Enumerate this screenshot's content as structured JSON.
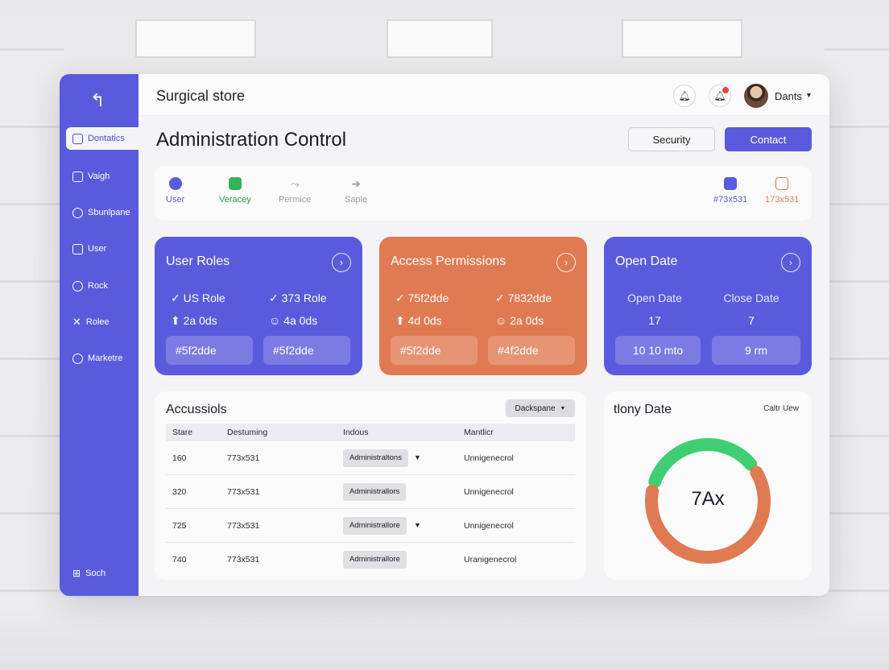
{
  "app": {
    "title": "Surgical store"
  },
  "user": {
    "name": "Dants"
  },
  "page": {
    "title": "Administration Control"
  },
  "header_buttons": {
    "security": "Security",
    "contact": "Contact"
  },
  "sidebar": {
    "items": [
      {
        "label": "Dontatics",
        "icon": "document-icon"
      },
      {
        "label": "Vaigh",
        "icon": "file-icon"
      },
      {
        "label": "Sbunlpane",
        "icon": "chart-icon"
      },
      {
        "label": "User",
        "icon": "mail-icon"
      },
      {
        "label": "Rock",
        "icon": "person-icon"
      },
      {
        "label": "Rolee",
        "icon": "tools-icon"
      },
      {
        "label": "Marketre",
        "icon": "info-icon"
      }
    ],
    "footer": {
      "label": "Soch",
      "icon": "grid-icon"
    }
  },
  "tabs": [
    {
      "label": "User",
      "color": "#5a5bdc"
    },
    {
      "label": "Veracey",
      "color": "#33b35a"
    },
    {
      "label": "Permice",
      "color": "#9a9aa4"
    },
    {
      "label": "Saple",
      "color": "#9a9aa4"
    },
    {
      "label": "#73x531",
      "color": "#5a5bdc"
    },
    {
      "label": "173x531",
      "color": "#e07a52"
    }
  ],
  "cards": {
    "user_roles": {
      "title": "User Roles",
      "stat1": "✓ US Role",
      "stat2": "✓ 373 Role",
      "stat3": "⬆ 2a 0ds",
      "stat4": "☺ 4a 0ds",
      "pill1": "#5f2dde",
      "pill2": "#5f2dde",
      "color": "#5a5bdc"
    },
    "access_permissions": {
      "title": "Access Permissions",
      "stat1": "✓ 75f2dde",
      "stat2": "✓ 7832dde",
      "stat3": "⬆ 4d 0ds",
      "stat4": "☺ 2a 0ds",
      "pill1": "#5f2dde",
      "pill2": "#4f2dde",
      "color": "#e07a52"
    },
    "open_date": {
      "title": "Open Date",
      "col1_label": "Open Date",
      "col2_label": "Close Date",
      "col1_value": "17",
      "col2_value": "7",
      "pill1": "10 10 mto",
      "pill2": "9 rm",
      "color": "#5a5bdc"
    }
  },
  "table": {
    "title": "Accussiols",
    "dropdown": "Dackspane",
    "headers": [
      "Stare",
      "Destuming",
      "Indous",
      "Mantlicr"
    ],
    "rows": [
      {
        "stare": "160",
        "destuming": "773x531",
        "role": "Administraltons",
        "mantlicr": "Unnigenecrol",
        "has_caret": true
      },
      {
        "stare": "320",
        "destuming": "773x531",
        "role": "Administrallors",
        "mantlicr": "Unnigenecrol",
        "has_caret": false
      },
      {
        "stare": "725",
        "destuming": "773x531",
        "role": "Administrallore",
        "mantlicr": "Unnigenecrol",
        "has_caret": true
      },
      {
        "stare": "740",
        "destuming": "773x531",
        "role": "Administrallore",
        "mantlicr": "Uranigenecrol",
        "has_caret": false
      }
    ]
  },
  "donut": {
    "title": "tlony Date",
    "link": "Caltr Uew",
    "center_label": "7Ax",
    "segments": [
      {
        "color": "#3fcf72",
        "fraction": 0.36
      },
      {
        "color": "#e07a52",
        "fraction": 0.64
      }
    ]
  }
}
